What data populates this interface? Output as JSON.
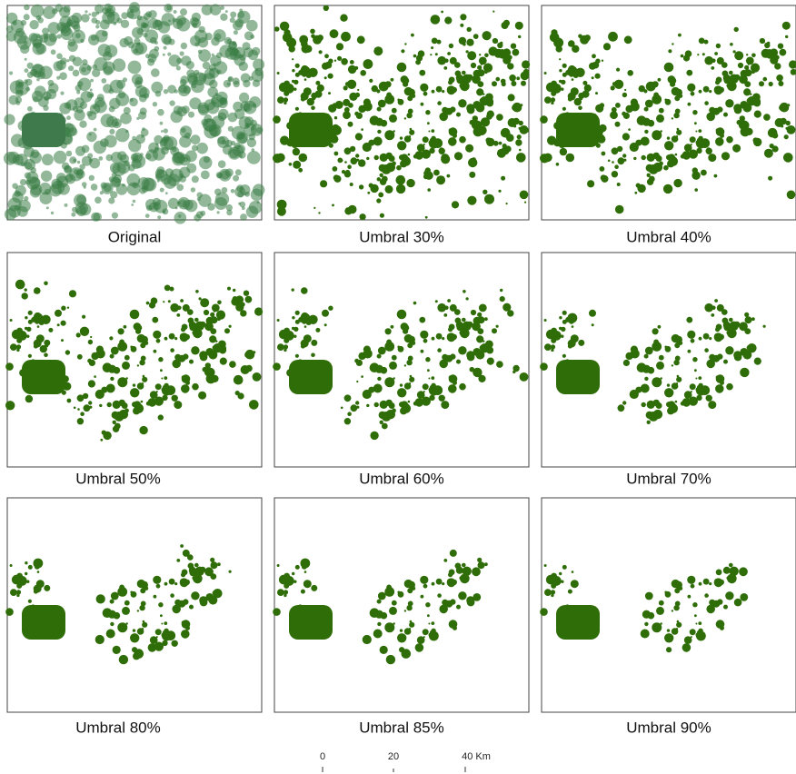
{
  "panels": [
    {
      "label": "Original"
    },
    {
      "label": "Umbral 30%"
    },
    {
      "label": "Umbral 40%"
    },
    {
      "label": "Umbral 50%"
    },
    {
      "label": "Umbral 60%"
    },
    {
      "label": "Umbral 70%"
    },
    {
      "label": "Umbral 80%"
    },
    {
      "label": "Umbral 85%"
    },
    {
      "label": "Umbral 90%"
    }
  ],
  "scale_bar": {
    "labels": [
      "0",
      "20",
      "40 Km"
    ]
  }
}
